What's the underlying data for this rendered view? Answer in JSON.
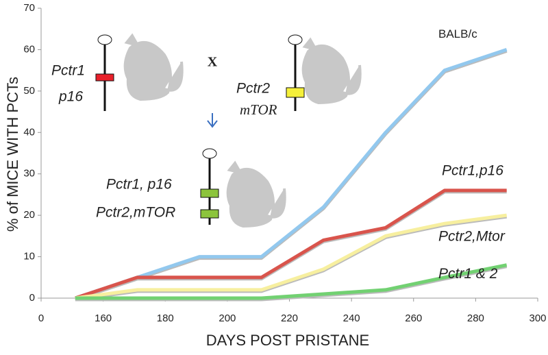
{
  "chart_data": {
    "type": "line",
    "x_label": "DAYS POST PRISTANE",
    "y_label": "% of MICE WITH PCTs",
    "x": [
      151,
      171,
      191,
      211,
      231,
      251,
      270,
      290
    ],
    "series": [
      {
        "name": "BALB/c",
        "color": "#92c8ee",
        "values": [
          0,
          5,
          10,
          10,
          22,
          40,
          55,
          60
        ]
      },
      {
        "name": "Pctr1,p16",
        "color": "#d9544c",
        "values": [
          0,
          5,
          5,
          5,
          14,
          17,
          26,
          26
        ]
      },
      {
        "name": "Pctr2,Mtor",
        "color": "#f7ef9f",
        "values": [
          0,
          2,
          2,
          2,
          7,
          15,
          18,
          20
        ]
      },
      {
        "name": "Pctr1 & 2",
        "color": "#72d172",
        "values": [
          0,
          0,
          0,
          0,
          1,
          2,
          5,
          8
        ]
      }
    ],
    "xlim": [
      140,
      300
    ],
    "xticks": [
      {
        "value": 140,
        "label": "0"
      },
      160,
      180,
      200,
      220,
      240,
      260,
      280,
      300
    ],
    "ylim": [
      0,
      70
    ],
    "yticks": [
      0,
      10,
      20,
      30,
      40,
      50,
      60,
      70
    ],
    "annotations": [
      "Pctr1",
      "p16",
      "X",
      "Pctr2",
      "mTOR",
      "Pctr1, p16",
      "Pctr2,mTOR"
    ]
  }
}
